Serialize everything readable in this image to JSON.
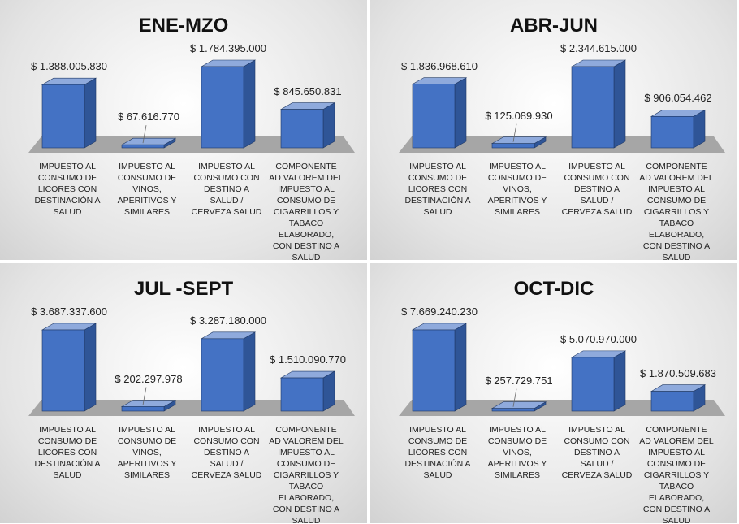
{
  "chart_data": [
    {
      "type": "bar3d",
      "title": "ENE-MZO",
      "color": "#4472c4",
      "categories": [
        "IMPUESTO AL CONSUMO DE LICORES CON DESTINACIÓN A SALUD",
        "IMPUESTO AL CONSUMO DE VINOS, APERITIVOS Y SIMILARES",
        "IMPUESTO AL CONSUMO CON DESTINO A SALUD / CERVEZA SALUD",
        "COMPONENTE AD VALOREM DEL IMPUESTO AL CONSUMO DE CIGARRILLOS Y TABACO ELABORADO, CON DESTINO A SALUD"
      ],
      "values": [
        1388005830,
        67616770,
        1784395000,
        845650831
      ],
      "value_labels": [
        "$ 1.388.005.830",
        "$ 67.616.770",
        "$ 1.784.395.000",
        "$ 845.650.831"
      ]
    },
    {
      "type": "bar3d",
      "title": "ABR-JUN",
      "color": "#4472c4",
      "categories": [
        "IMPUESTO AL CONSUMO DE LICORES CON DESTINACIÓN A SALUD",
        "IMPUESTO AL CONSUMO DE VINOS, APERITIVOS Y SIMILARES",
        "IMPUESTO AL CONSUMO CON DESTINO A SALUD / CERVEZA SALUD",
        "COMPONENTE AD VALOREM DEL IMPUESTO AL CONSUMO DE CIGARRILLOS Y TABACO ELABORADO, CON DESTINO A SALUD"
      ],
      "values": [
        1836968610,
        125089930,
        2344615000,
        906054462
      ],
      "value_labels": [
        "$ 1.836.968.610",
        "$ 125.089.930",
        "$ 2.344.615.000",
        "$ 906.054.462"
      ]
    },
    {
      "type": "bar3d",
      "title": "JUL -SEPT",
      "color": "#4472c4",
      "categories": [
        "IMPUESTO AL CONSUMO DE LICORES CON DESTINACIÓN A SALUD",
        "IMPUESTO AL CONSUMO DE VINOS, APERITIVOS Y SIMILARES",
        "IMPUESTO AL CONSUMO CON DESTINO A SALUD / CERVEZA SALUD",
        "COMPONENTE AD VALOREM DEL IMPUESTO AL CONSUMO DE CIGARRILLOS Y TABACO ELABORADO, CON DESTINO A SALUD"
      ],
      "values": [
        3687337600,
        202297978,
        3287180000,
        1510090770
      ],
      "value_labels": [
        "$ 3.687.337.600",
        "$ 202.297.978",
        "$ 3.287.180.000",
        "$ 1.510.090.770"
      ]
    },
    {
      "type": "bar3d",
      "title": "OCT-DIC",
      "color": "#4472c4",
      "categories": [
        "IMPUESTO AL CONSUMO DE LICORES CON DESTINACIÓN A SALUD",
        "IMPUESTO AL CONSUMO DE VINOS, APERITIVOS Y SIMILARES",
        "IMPUESTO AL CONSUMO CON DESTINO A SALUD / CERVEZA SALUD",
        "COMPONENTE AD VALOREM DEL IMPUESTO AL CONSUMO DE CIGARRILLOS Y TABACO ELABORADO, CON DESTINO A SALUD"
      ],
      "values": [
        7669240230,
        257729751,
        5070970000,
        1870509683
      ],
      "value_labels": [
        "$ 7.669.240.230",
        "$ 257.729.751",
        "$ 5.070.970.000",
        "$ 1.870.509.683"
      ]
    }
  ]
}
